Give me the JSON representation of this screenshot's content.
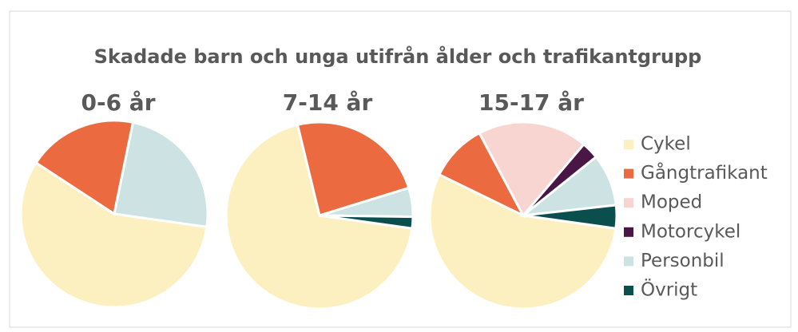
{
  "title": "Skadade barn och unga utifrån ålder och trafikantgrupp",
  "legend": "right",
  "chart_data": [
    {
      "type": "pie",
      "title": "0-6 år",
      "categories": [
        "Cykel",
        "Gångtrafikant",
        "Moped",
        "Motorcykel",
        "Personbil",
        "Övrigt"
      ],
      "values": [
        57,
        19,
        0,
        0,
        24,
        0
      ],
      "colors": [
        "#fdf0c0",
        "#ec6a40",
        "#f9d5d2",
        "#4a1645",
        "#cde3e3",
        "#0a4f4d"
      ]
    },
    {
      "type": "pie",
      "title": "7-14 år",
      "categories": [
        "Cykel",
        "Gångtrafikant",
        "Moped",
        "Motorcykel",
        "Personbil",
        "Övrigt"
      ],
      "values": [
        69,
        24,
        0,
        0,
        5,
        2
      ],
      "colors": [
        "#fdf0c0",
        "#ec6a40",
        "#f9d5d2",
        "#4a1645",
        "#cde3e3",
        "#0a4f4d"
      ]
    },
    {
      "type": "pie",
      "title": "15-17 år",
      "categories": [
        "Cykel",
        "Gångtrafikant",
        "Moped",
        "Motorcykel",
        "Personbil",
        "Övrigt"
      ],
      "values": [
        55,
        10,
        19,
        3,
        9,
        4
      ],
      "colors": [
        "#fdf0c0",
        "#ec6a40",
        "#f9d5d2",
        "#4a1645",
        "#cde3e3",
        "#0a4f4d"
      ]
    }
  ]
}
